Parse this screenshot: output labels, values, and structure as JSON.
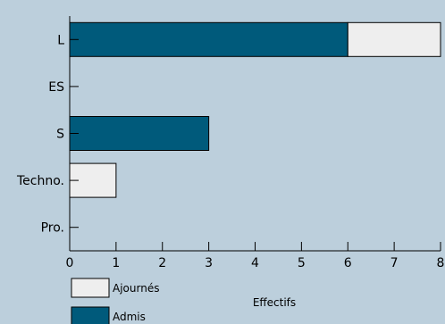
{
  "chart_data": {
    "type": "bar",
    "orientation": "horizontal",
    "stacked": true,
    "categories": [
      "L",
      "ES",
      "S",
      "Techno.",
      "Pro."
    ],
    "series": [
      {
        "name": "Admis",
        "values": [
          6,
          0,
          3,
          0,
          0
        ],
        "color": "#005a7b"
      },
      {
        "name": "Ajournés",
        "values": [
          2,
          0,
          0,
          1,
          0
        ],
        "color": "#eeeeee"
      }
    ],
    "xlabel": "Effectifs",
    "xlim": [
      0,
      8
    ],
    "xticks": [
      0,
      1,
      2,
      3,
      4,
      5,
      6,
      7,
      8
    ],
    "grid": false,
    "legend": {
      "placement": "bottom-left",
      "order": [
        "Ajournés",
        "Admis"
      ]
    }
  }
}
